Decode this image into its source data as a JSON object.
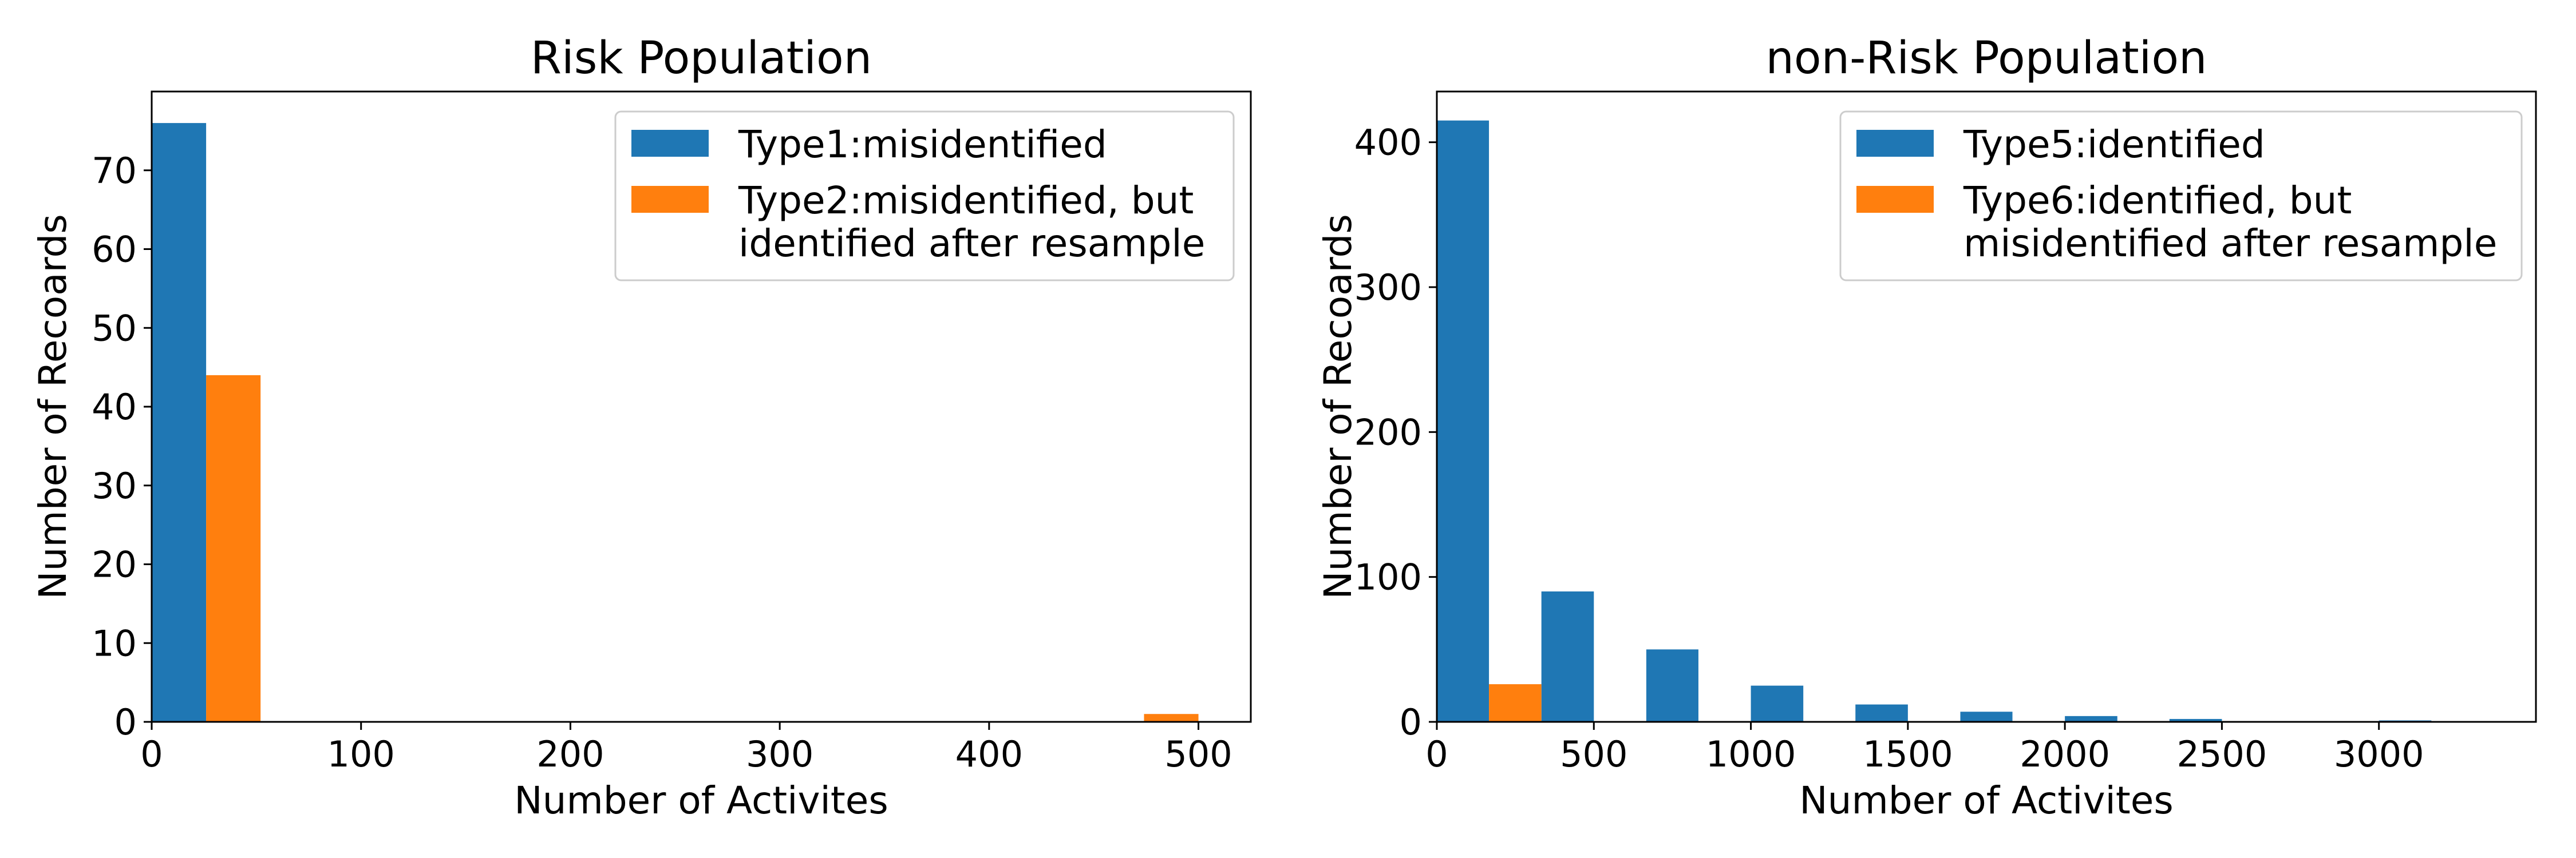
{
  "colors": {
    "series1": "#1f77b4",
    "series2": "#ff7f0e"
  },
  "chart_data": [
    {
      "type": "bar",
      "title": "Risk Population",
      "xlabel": "Number of Activites",
      "ylabel": "Number of Recoards",
      "xlim": [
        0,
        525
      ],
      "ylim": [
        0,
        80
      ],
      "xticks": [
        0,
        100,
        200,
        300,
        400,
        500
      ],
      "yticks": [
        0,
        10,
        20,
        30,
        40,
        50,
        60,
        70
      ],
      "legend_position": "top-right",
      "series": [
        {
          "name": "Type1:misidentified",
          "legend_lines": [
            "Type1:misidentified"
          ],
          "color": "#1f77b4",
          "bars": [
            {
              "x0": 0,
              "x1": 26,
              "value": 76
            }
          ]
        },
        {
          "name": "Type2:misidentified, but identified after resample",
          "legend_lines": [
            "Type2:misidentified, but",
            "identified after resample"
          ],
          "color": "#ff7f0e",
          "bars": [
            {
              "x0": 26,
              "x1": 52,
              "value": 44
            },
            {
              "x0": 474,
              "x1": 500,
              "value": 1
            }
          ]
        }
      ]
    },
    {
      "type": "bar",
      "title": "non-Risk Population",
      "xlabel": "Number of Activites",
      "ylabel": "Number of Recoards",
      "xlim": [
        0,
        3500
      ],
      "ylim": [
        0,
        435
      ],
      "xticks": [
        0,
        500,
        1000,
        1500,
        2000,
        2500,
        3000
      ],
      "yticks": [
        0,
        100,
        200,
        300,
        400
      ],
      "legend_position": "top-right",
      "series": [
        {
          "name": "Type5:identified",
          "legend_lines": [
            "Type5:identified"
          ],
          "color": "#1f77b4",
          "bars": [
            {
              "x0": 0,
              "x1": 166,
              "value": 415
            },
            {
              "x0": 333,
              "x1": 500,
              "value": 90
            },
            {
              "x0": 667,
              "x1": 833,
              "value": 50
            },
            {
              "x0": 1000,
              "x1": 1167,
              "value": 25
            },
            {
              "x0": 1333,
              "x1": 1500,
              "value": 12
            },
            {
              "x0": 1667,
              "x1": 1833,
              "value": 7
            },
            {
              "x0": 2000,
              "x1": 2167,
              "value": 4
            },
            {
              "x0": 2333,
              "x1": 2500,
              "value": 2
            },
            {
              "x0": 3000,
              "x1": 3167,
              "value": 1
            }
          ]
        },
        {
          "name": "Type6:identified, but misidentified after resample",
          "legend_lines": [
            "Type6:identified, but",
            "misidentified after resample"
          ],
          "color": "#ff7f0e",
          "bars": [
            {
              "x0": 166,
              "x1": 333,
              "value": 26
            }
          ]
        }
      ]
    }
  ]
}
